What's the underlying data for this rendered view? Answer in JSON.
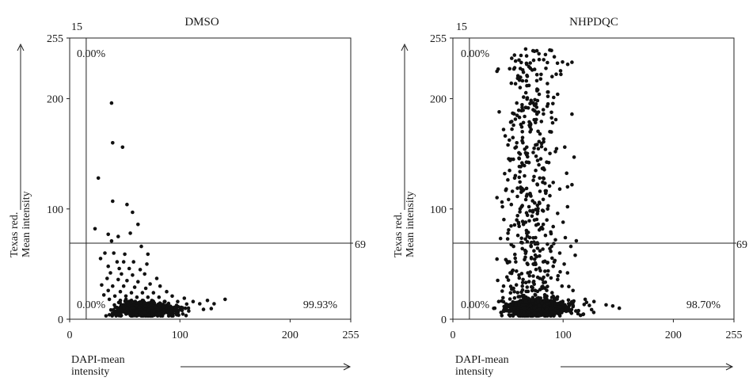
{
  "chart_data": [
    {
      "type": "scatter",
      "title": "DMSO",
      "xlabel_line1": "DAPI-mean",
      "xlabel_line2": "intensity",
      "ylabel_line1": "Texas red.",
      "ylabel_line2": "Mean intensity",
      "xlim": [
        0,
        255
      ],
      "ylim": [
        0,
        255
      ],
      "x_ticks": [
        0,
        100,
        200,
        255
      ],
      "y_ticks": [
        0,
        100,
        200,
        255
      ],
      "x_gate": 15,
      "x_gate_label": "15",
      "y_gate": 69,
      "y_gate_label": "69",
      "quadrant_labels": {
        "upper_left": "0.00%",
        "lower_left": "0.00%",
        "lower_right": "99.93%"
      },
      "grid": false,
      "points": [
        [
          38,
          196
        ],
        [
          39,
          160
        ],
        [
          48,
          156
        ],
        [
          26,
          128
        ],
        [
          39,
          107
        ],
        [
          52,
          104
        ],
        [
          57,
          97
        ],
        [
          23,
          82
        ],
        [
          62,
          86
        ],
        [
          35,
          77
        ],
        [
          44,
          75
        ],
        [
          55,
          78
        ],
        [
          38,
          71
        ],
        [
          65,
          66
        ],
        [
          32,
          60
        ],
        [
          40,
          60
        ],
        [
          50,
          59
        ],
        [
          71,
          59
        ],
        [
          28,
          55
        ],
        [
          43,
          52
        ],
        [
          49,
          52
        ],
        [
          58,
          52
        ],
        [
          70,
          50
        ],
        [
          35,
          48
        ],
        [
          45,
          46
        ],
        [
          54,
          46
        ],
        [
          64,
          45
        ],
        [
          37,
          42
        ],
        [
          47,
          41
        ],
        [
          57,
          40
        ],
        [
          68,
          41
        ],
        [
          79,
          37
        ],
        [
          34,
          37
        ],
        [
          44,
          36
        ],
        [
          52,
          35
        ],
        [
          62,
          34
        ],
        [
          73,
          32
        ],
        [
          29,
          31
        ],
        [
          39,
          30
        ],
        [
          49,
          30
        ],
        [
          59,
          29
        ],
        [
          69,
          28
        ],
        [
          82,
          30
        ],
        [
          35,
          26
        ],
        [
          46,
          25
        ],
        [
          56,
          24
        ],
        [
          66,
          24
        ],
        [
          76,
          24
        ],
        [
          88,
          25
        ],
        [
          31,
          22
        ],
        [
          41,
          21
        ],
        [
          51,
          21
        ],
        [
          61,
          20
        ],
        [
          71,
          20
        ],
        [
          81,
          20
        ],
        [
          93,
          21
        ],
        [
          104,
          19
        ],
        [
          36,
          18
        ],
        [
          46,
          17
        ],
        [
          56,
          17
        ],
        [
          66,
          17
        ],
        [
          76,
          16
        ],
        [
          86,
          16
        ],
        [
          98,
          16
        ],
        [
          112,
          16
        ],
        [
          125,
          17
        ],
        [
          141,
          18
        ],
        [
          118,
          14
        ],
        [
          131,
          14
        ]
      ],
      "core_cloud": {
        "x_mean": 62,
        "x_sd": 18,
        "y_mean": 9,
        "y_sd": 3,
        "count": 750
      }
    },
    {
      "type": "scatter",
      "title": "NHPDQC",
      "xlabel_line1": "DAPI-mean",
      "xlabel_line2": "intensity",
      "ylabel_line1": "Texas red.",
      "ylabel_line2": "Mean intensity",
      "xlim": [
        0,
        255
      ],
      "ylim": [
        0,
        255
      ],
      "x_ticks": [
        0,
        100,
        200,
        255
      ],
      "y_ticks": [
        0,
        100,
        200,
        255
      ],
      "x_gate": 15,
      "x_gate_label": "15",
      "y_gate": 69,
      "y_gate_label": "69",
      "quadrant_labels": {
        "upper_left": "0.00%",
        "lower_left": "0.00%",
        "lower_right": "98.70%"
      },
      "grid": false,
      "points": [
        [
          66,
          245
        ],
        [
          74,
          243
        ],
        [
          84,
          240
        ],
        [
          92,
          238
        ],
        [
          108,
          233
        ],
        [
          60,
          235
        ],
        [
          56,
          228
        ],
        [
          64,
          224
        ],
        [
          72,
          226
        ],
        [
          80,
          222
        ],
        [
          90,
          220
        ],
        [
          98,
          222
        ],
        [
          53,
          214
        ],
        [
          61,
          210
        ],
        [
          69,
          212
        ],
        [
          77,
          208
        ],
        [
          86,
          206
        ],
        [
          95,
          204
        ],
        [
          42,
          188
        ],
        [
          58,
          196
        ],
        [
          66,
          192
        ],
        [
          74,
          194
        ],
        [
          82,
          190
        ],
        [
          108,
          186
        ],
        [
          46,
          172
        ],
        [
          55,
          176
        ],
        [
          63,
          170
        ],
        [
          71,
          172
        ],
        [
          79,
          168
        ],
        [
          88,
          170
        ],
        [
          50,
          158
        ],
        [
          58,
          160
        ],
        [
          67,
          156
        ],
        [
          75,
          158
        ],
        [
          84,
          154
        ],
        [
          93,
          152
        ],
        [
          52,
          144
        ],
        [
          60,
          146
        ],
        [
          69,
          142
        ],
        [
          78,
          140
        ],
        [
          87,
          142
        ],
        [
          110,
          147
        ],
        [
          47,
          132
        ],
        [
          56,
          128
        ],
        [
          65,
          130
        ],
        [
          73,
          126
        ],
        [
          82,
          128
        ],
        [
          91,
          124
        ],
        [
          54,
          116
        ],
        [
          62,
          118
        ],
        [
          70,
          114
        ],
        [
          79,
          116
        ],
        [
          88,
          112
        ],
        [
          97,
          118
        ],
        [
          104,
          120
        ],
        [
          108,
          122
        ],
        [
          45,
          102
        ],
        [
          53,
          104
        ],
        [
          61,
          100
        ],
        [
          69,
          102
        ],
        [
          77,
          98
        ],
        [
          86,
          100
        ],
        [
          95,
          96
        ],
        [
          104,
          102
        ],
        [
          58,
          90
        ],
        [
          66,
          88
        ],
        [
          74,
          90
        ],
        [
          82,
          86
        ],
        [
          91,
          84
        ],
        [
          100,
          88
        ],
        [
          50,
          78
        ],
        [
          59,
          76
        ],
        [
          67,
          78
        ],
        [
          75,
          74
        ],
        [
          84,
          76
        ],
        [
          93,
          72
        ],
        [
          102,
          74
        ],
        [
          55,
          66
        ],
        [
          63,
          64
        ],
        [
          71,
          66
        ],
        [
          79,
          62
        ],
        [
          88,
          64
        ],
        [
          97,
          60
        ],
        [
          107,
          66
        ],
        [
          48,
          54
        ],
        [
          57,
          52
        ],
        [
          65,
          54
        ],
        [
          73,
          50
        ],
        [
          82,
          52
        ],
        [
          91,
          48
        ],
        [
          101,
          50
        ],
        [
          111,
          58
        ],
        [
          52,
          42
        ],
        [
          60,
          40
        ],
        [
          68,
          42
        ],
        [
          77,
          38
        ],
        [
          86,
          40
        ],
        [
          95,
          36
        ],
        [
          104,
          42
        ],
        [
          46,
          30
        ],
        [
          55,
          28
        ],
        [
          63,
          30
        ],
        [
          72,
          26
        ],
        [
          81,
          28
        ],
        [
          90,
          24
        ],
        [
          99,
          30
        ],
        [
          109,
          26
        ],
        [
          120,
          18
        ],
        [
          128,
          16
        ],
        [
          139,
          13
        ],
        [
          145,
          12
        ],
        [
          151,
          10
        ],
        [
          44,
          6
        ],
        [
          38,
          10
        ]
      ],
      "column_cloud": {
        "x_mean": 70,
        "x_sd": 14,
        "y_min": 12,
        "y_max": 245,
        "count": 380
      },
      "core_cloud": {
        "x_mean": 68,
        "x_sd": 17,
        "y_mean": 10,
        "y_sd": 4,
        "count": 900
      }
    }
  ]
}
